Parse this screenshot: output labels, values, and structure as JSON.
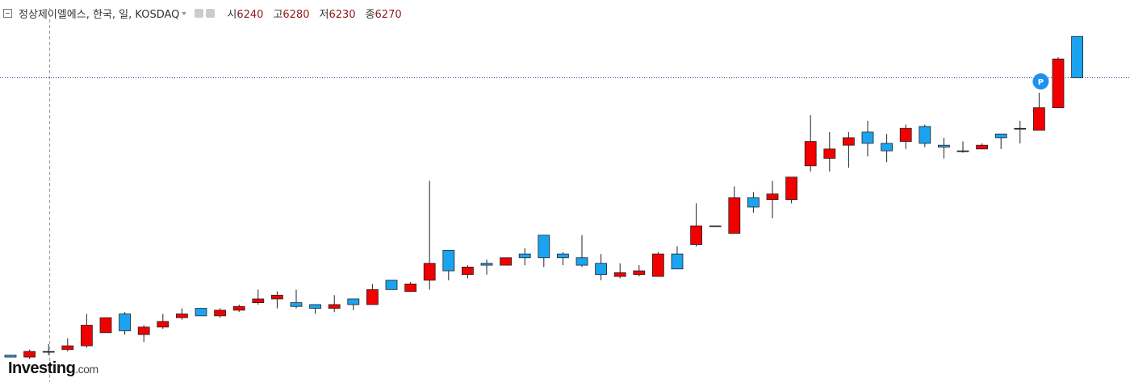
{
  "chart_data": {
    "type": "candlestick",
    "title": "정상제이엘에스, 한국, 일, KOSDAQ",
    "ohlc_labels": [
      "시",
      "고",
      "저",
      "종"
    ],
    "crosshair_index": 1,
    "marker_label": "P",
    "marker_index": 54,
    "up_color": "#f20000",
    "down_color": "#1aa3f0",
    "flat_color": "#333333",
    "ylim": [
      6150,
      8050
    ],
    "open": [
      6250,
      6240,
      6270,
      6280,
      6300,
      6370,
      6470,
      6360,
      6400,
      6450,
      6500,
      6460,
      6490,
      6530,
      6550,
      6530,
      6520,
      6500,
      6550,
      6520,
      6650,
      6590,
      6650,
      6810,
      6680,
      6740,
      6730,
      6790,
      6890,
      6790,
      6770,
      6740,
      6670,
      6680,
      6670,
      6790,
      6840,
      6940,
      6900,
      7090,
      7080,
      7080,
      7260,
      7300,
      7370,
      7440,
      7380,
      7390,
      7470,
      7370,
      7340,
      7350,
      7430,
      7460,
      7450,
      7570,
      7950
    ],
    "high": [
      6250,
      6280,
      6310,
      6340,
      6470,
      6450,
      6480,
      6410,
      6470,
      6500,
      6500,
      6500,
      6520,
      6600,
      6590,
      6600,
      6520,
      6570,
      6550,
      6630,
      6650,
      6640,
      7180,
      6810,
      6730,
      6760,
      6770,
      6820,
      6890,
      6800,
      6890,
      6790,
      6740,
      6730,
      6800,
      6830,
      7060,
      6940,
      7150,
      7120,
      7180,
      7200,
      7530,
      7440,
      7440,
      7500,
      7430,
      7480,
      7480,
      7410,
      7390,
      7380,
      7430,
      7500,
      7650,
      7840,
      7950
    ],
    "low": [
      6240,
      6230,
      6250,
      6270,
      6290,
      6370,
      6360,
      6320,
      6390,
      6440,
      6460,
      6450,
      6480,
      6520,
      6500,
      6500,
      6470,
      6480,
      6490,
      6520,
      6600,
      6590,
      6600,
      6650,
      6660,
      6680,
      6730,
      6730,
      6720,
      6730,
      6720,
      6650,
      6660,
      6670,
      6670,
      6710,
      6830,
      6940,
      6900,
      7010,
      6980,
      7060,
      7230,
      7230,
      7250,
      7310,
      7280,
      7350,
      7360,
      7300,
      7330,
      7350,
      7350,
      7380,
      7450,
      7570,
      7730
    ],
    "close": [
      6240,
      6270,
      6270,
      6300,
      6410,
      6450,
      6380,
      6400,
      6430,
      6470,
      6460,
      6490,
      6510,
      6550,
      6570,
      6510,
      6500,
      6520,
      6520,
      6600,
      6600,
      6630,
      6740,
      6700,
      6720,
      6730,
      6770,
      6770,
      6770,
      6770,
      6730,
      6680,
      6690,
      6700,
      6790,
      6710,
      6940,
      6940,
      7090,
      7040,
      7110,
      7200,
      7390,
      7350,
      7410,
      7380,
      7340,
      7460,
      7380,
      7360,
      7340,
      7370,
      7410,
      7460,
      7570,
      7830,
      7730
    ]
  },
  "source": {
    "brand": "Investing",
    "suffix": ".com"
  }
}
